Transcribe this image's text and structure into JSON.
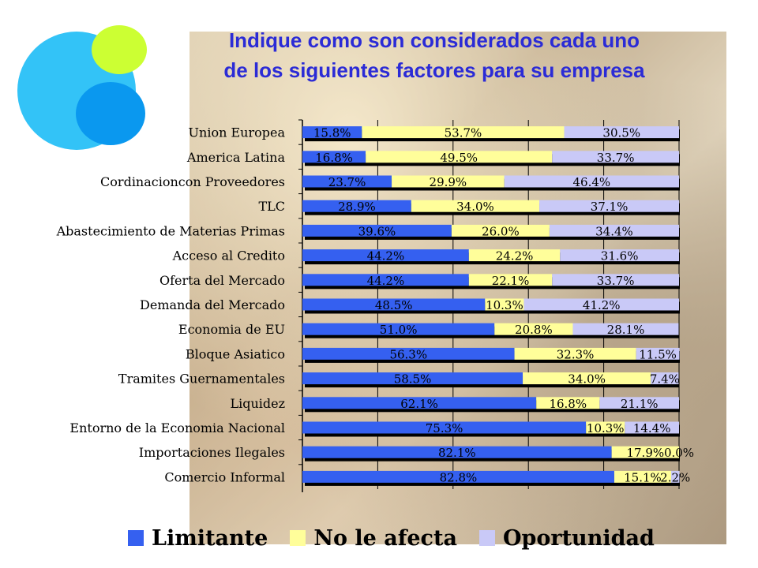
{
  "title_line1": "Indique como son considerados cada uno",
  "title_line2": "de los siguientes factores para su empresa",
  "colors": {
    "limitante": "#3560f0",
    "no_afecta": "#fffe9a",
    "oportunidad": "#c9c9f7",
    "bar_shadow": "#000000"
  },
  "chart_data": {
    "type": "bar",
    "orientation": "horizontal",
    "stacked": true,
    "categories": [
      "Union Europea",
      "America Latina",
      "Cordinacioncon Proveedores",
      "TLC",
      "Abastecimiento de Materias Primas",
      "Acceso al Credito",
      "Oferta del Mercado",
      "Demanda del Mercado",
      "Economia de EU",
      "Bloque Asiatico",
      "Tramites Guernamentales",
      "Liquidez",
      "Entorno de la Economia Nacional",
      "Importaciones Ilegales",
      "Comercio Informal"
    ],
    "series": [
      {
        "name": "Limitante",
        "values": [
          15.8,
          16.8,
          23.7,
          28.9,
          39.6,
          44.2,
          44.2,
          48.5,
          51.0,
          56.3,
          58.5,
          62.1,
          75.3,
          82.1,
          82.8
        ],
        "labels": [
          "15.8%",
          "16.8%",
          "23.7%",
          "28.9%",
          "39.6%",
          "44.2%",
          "44.2%",
          "48.5%",
          "51.0%",
          "56.3%",
          "58.5%",
          "62.1%",
          "75.3%",
          "82.1%",
          "82.8%"
        ]
      },
      {
        "name": "No le afecta",
        "values": [
          53.7,
          49.5,
          29.9,
          34.0,
          26.0,
          24.2,
          22.1,
          10.3,
          20.8,
          32.3,
          34.0,
          16.8,
          10.3,
          17.9,
          15.1
        ],
        "labels": [
          "53.7%",
          "49.5%",
          "29.9%",
          "34.0%",
          "26.0%",
          "24.2%",
          "22.1%",
          "10.3%",
          "20.8%",
          "32.3%",
          "34.0%",
          "16.8%",
          "10.3%",
          "17.9%",
          "15.1%"
        ]
      },
      {
        "name": "Oportunidad",
        "values": [
          30.5,
          33.7,
          46.4,
          37.1,
          34.4,
          31.6,
          33.7,
          41.2,
          28.1,
          11.5,
          7.4,
          21.1,
          14.4,
          0.0,
          2.2
        ],
        "labels": [
          "30.5%",
          "33.7%",
          "46.4%",
          "37.1%",
          "34.4%",
          "31.6%",
          "33.7%",
          "41.2%",
          "28.1%",
          "11.5%",
          "7.4%",
          "21.1%",
          "14.4%",
          "0.0%",
          "2.2%"
        ]
      }
    ],
    "xlim": [
      0,
      100
    ],
    "grid": true,
    "legend_position": "bottom"
  }
}
